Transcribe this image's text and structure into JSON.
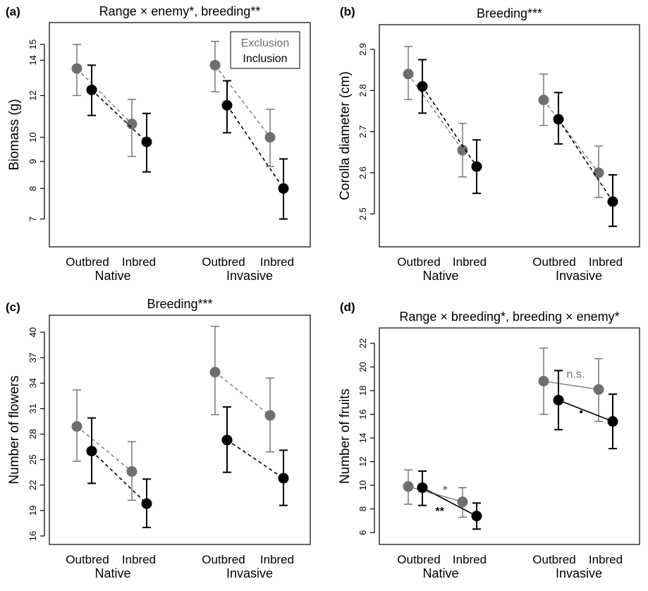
{
  "colors": {
    "exclusion": "#6e6e6e",
    "inclusion": "#000000"
  },
  "legend": {
    "items": [
      "Exclusion",
      "Inclusion"
    ]
  },
  "chart_data": [
    {
      "panel": "(a)",
      "type": "scatter",
      "title": "Range × enemy*, breeding**",
      "ylabel": "Biomass (g)",
      "yscale": "log",
      "ylim": [
        6.2,
        16.5
      ],
      "yticks": [
        7,
        8,
        9,
        10,
        12,
        14,
        15
      ],
      "categories": [
        "Outbred",
        "Inbred",
        "Outbred",
        "Inbred"
      ],
      "groups": [
        "Native",
        "Invasive"
      ],
      "legend_position": "top-right",
      "series": [
        {
          "name": "Exclusion",
          "values": [
            13.5,
            10.6,
            13.7,
            10.0
          ],
          "lower": [
            12.0,
            9.2,
            12.2,
            8.8
          ],
          "upper": [
            15.0,
            11.8,
            15.2,
            11.3
          ],
          "line_style": "dashed"
        },
        {
          "name": "Inclusion",
          "values": [
            12.3,
            9.8,
            11.5,
            8.0
          ],
          "lower": [
            11.0,
            8.6,
            10.2,
            7.0
          ],
          "upper": [
            13.7,
            11.1,
            12.8,
            9.1
          ],
          "line_style": "dashed"
        }
      ],
      "annotations": []
    },
    {
      "panel": "(b)",
      "type": "scatter",
      "title": "Breeding***",
      "ylabel": "Corolla diameter (cm)",
      "yscale": "linear",
      "ylim": [
        2.42,
        2.96
      ],
      "yticks": [
        2.5,
        2.6,
        2.7,
        2.8,
        2.9
      ],
      "categories": [
        "Outbred",
        "Inbred",
        "Outbred",
        "Inbred"
      ],
      "groups": [
        "Native",
        "Invasive"
      ],
      "series": [
        {
          "name": "Exclusion",
          "values": [
            2.84,
            2.655,
            2.777,
            2.6
          ],
          "lower": [
            2.778,
            2.59,
            2.715,
            2.54
          ],
          "upper": [
            2.907,
            2.72,
            2.84,
            2.665
          ],
          "line_style": "dashed"
        },
        {
          "name": "Inclusion",
          "values": [
            2.81,
            2.615,
            2.73,
            2.53
          ],
          "lower": [
            2.745,
            2.55,
            2.67,
            2.47
          ],
          "upper": [
            2.875,
            2.68,
            2.795,
            2.595
          ],
          "line_style": "dashed"
        }
      ],
      "annotations": []
    },
    {
      "panel": "(c)",
      "type": "scatter",
      "title": "Breeding***",
      "ylabel": "Number of flowers",
      "yscale": "linear",
      "ylim": [
        15,
        42
      ],
      "yticks": [
        16,
        19,
        22,
        25,
        28,
        31,
        34,
        37,
        40
      ],
      "categories": [
        "Outbred",
        "Inbred",
        "Outbred",
        "Inbred"
      ],
      "groups": [
        "Native",
        "Invasive"
      ],
      "series": [
        {
          "name": "Exclusion",
          "values": [
            28.9,
            23.6,
            35.3,
            30.2
          ],
          "lower": [
            24.8,
            20.2,
            30.3,
            25.9
          ],
          "upper": [
            33.2,
            27.1,
            40.7,
            34.6
          ],
          "line_style": "dashed"
        },
        {
          "name": "Inclusion",
          "values": [
            26.0,
            19.8,
            27.3,
            22.8
          ],
          "lower": [
            22.2,
            17.0,
            23.5,
            19.6
          ],
          "upper": [
            29.9,
            22.7,
            31.2,
            26.1
          ],
          "line_style": "dashed"
        }
      ],
      "annotations": []
    },
    {
      "panel": "(d)",
      "type": "scatter",
      "title": "Range × breeding*, breeding × enemy*",
      "ylabel": "Number of fruits",
      "yscale": "linear",
      "ylim": [
        5,
        23.3
      ],
      "yticks": [
        6,
        8,
        10,
        12,
        14,
        16,
        18,
        20,
        22
      ],
      "categories": [
        "Outbred",
        "Inbred",
        "Outbred",
        "Inbred"
      ],
      "groups": [
        "Native",
        "Invasive"
      ],
      "series": [
        {
          "name": "Exclusion",
          "values": [
            9.9,
            8.6,
            18.8,
            18.1
          ],
          "lower": [
            8.4,
            7.3,
            16.0,
            15.4
          ],
          "upper": [
            11.3,
            9.8,
            21.6,
            20.7
          ],
          "line_style": "solid"
        },
        {
          "name": "Inclusion",
          "values": [
            9.8,
            7.4,
            17.2,
            15.4
          ],
          "lower": [
            8.3,
            6.3,
            14.7,
            13.1
          ],
          "upper": [
            11.2,
            8.5,
            19.7,
            17.7
          ],
          "line_style": "solid"
        }
      ],
      "annotations": [
        {
          "text": "*",
          "color": "exclusion",
          "x": 0.55,
          "y": 9.3
        },
        {
          "text": "**",
          "color": "inclusion",
          "x": 0.45,
          "y": 7.5
        },
        {
          "text": "n.s.",
          "color": "exclusion",
          "x": 2.45,
          "y": 19.1
        },
        {
          "text": "•",
          "color": "inclusion",
          "x": 2.55,
          "y": 15.9
        }
      ]
    }
  ]
}
